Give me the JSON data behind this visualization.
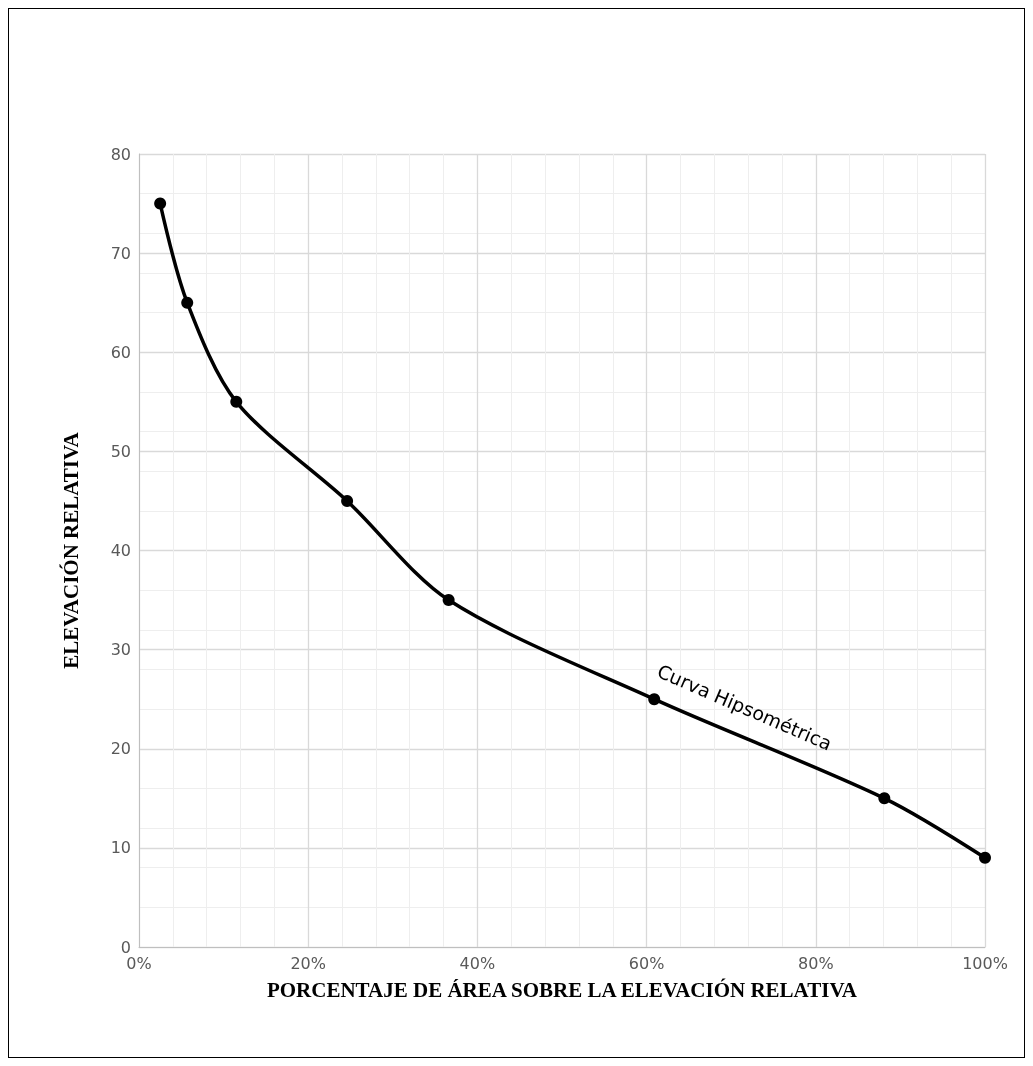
{
  "chart_data": {
    "type": "line",
    "xlabel": "PORCENTAJE DE ÁREA SOBRE LA ELEVACIÓN RELATIVA",
    "ylabel": "ELEVACIÓN RELATIVA",
    "series": [
      {
        "name": "Curva Hipsométrica",
        "color": "#000000",
        "x": [
          2.5,
          5.7,
          11.5,
          24.6,
          36.6,
          60.9,
          88.1,
          100
        ],
        "values": [
          75,
          65,
          55,
          45,
          35,
          25,
          15,
          9
        ]
      }
    ],
    "xlim": [
      0,
      100
    ],
    "xticks": [
      {
        "value": 0,
        "label": "0%"
      },
      {
        "value": 20,
        "label": "20%"
      },
      {
        "value": 40,
        "label": "40%"
      },
      {
        "value": 60,
        "label": "60%"
      },
      {
        "value": 80,
        "label": "80%"
      },
      {
        "value": 100,
        "label": "100%"
      }
    ],
    "ylim": [
      0,
      80
    ],
    "yticks": [
      0,
      10,
      20,
      30,
      40,
      50,
      60,
      70,
      80
    ],
    "grid": true,
    "legend": false,
    "marker": "circle",
    "line_style": "solid"
  }
}
